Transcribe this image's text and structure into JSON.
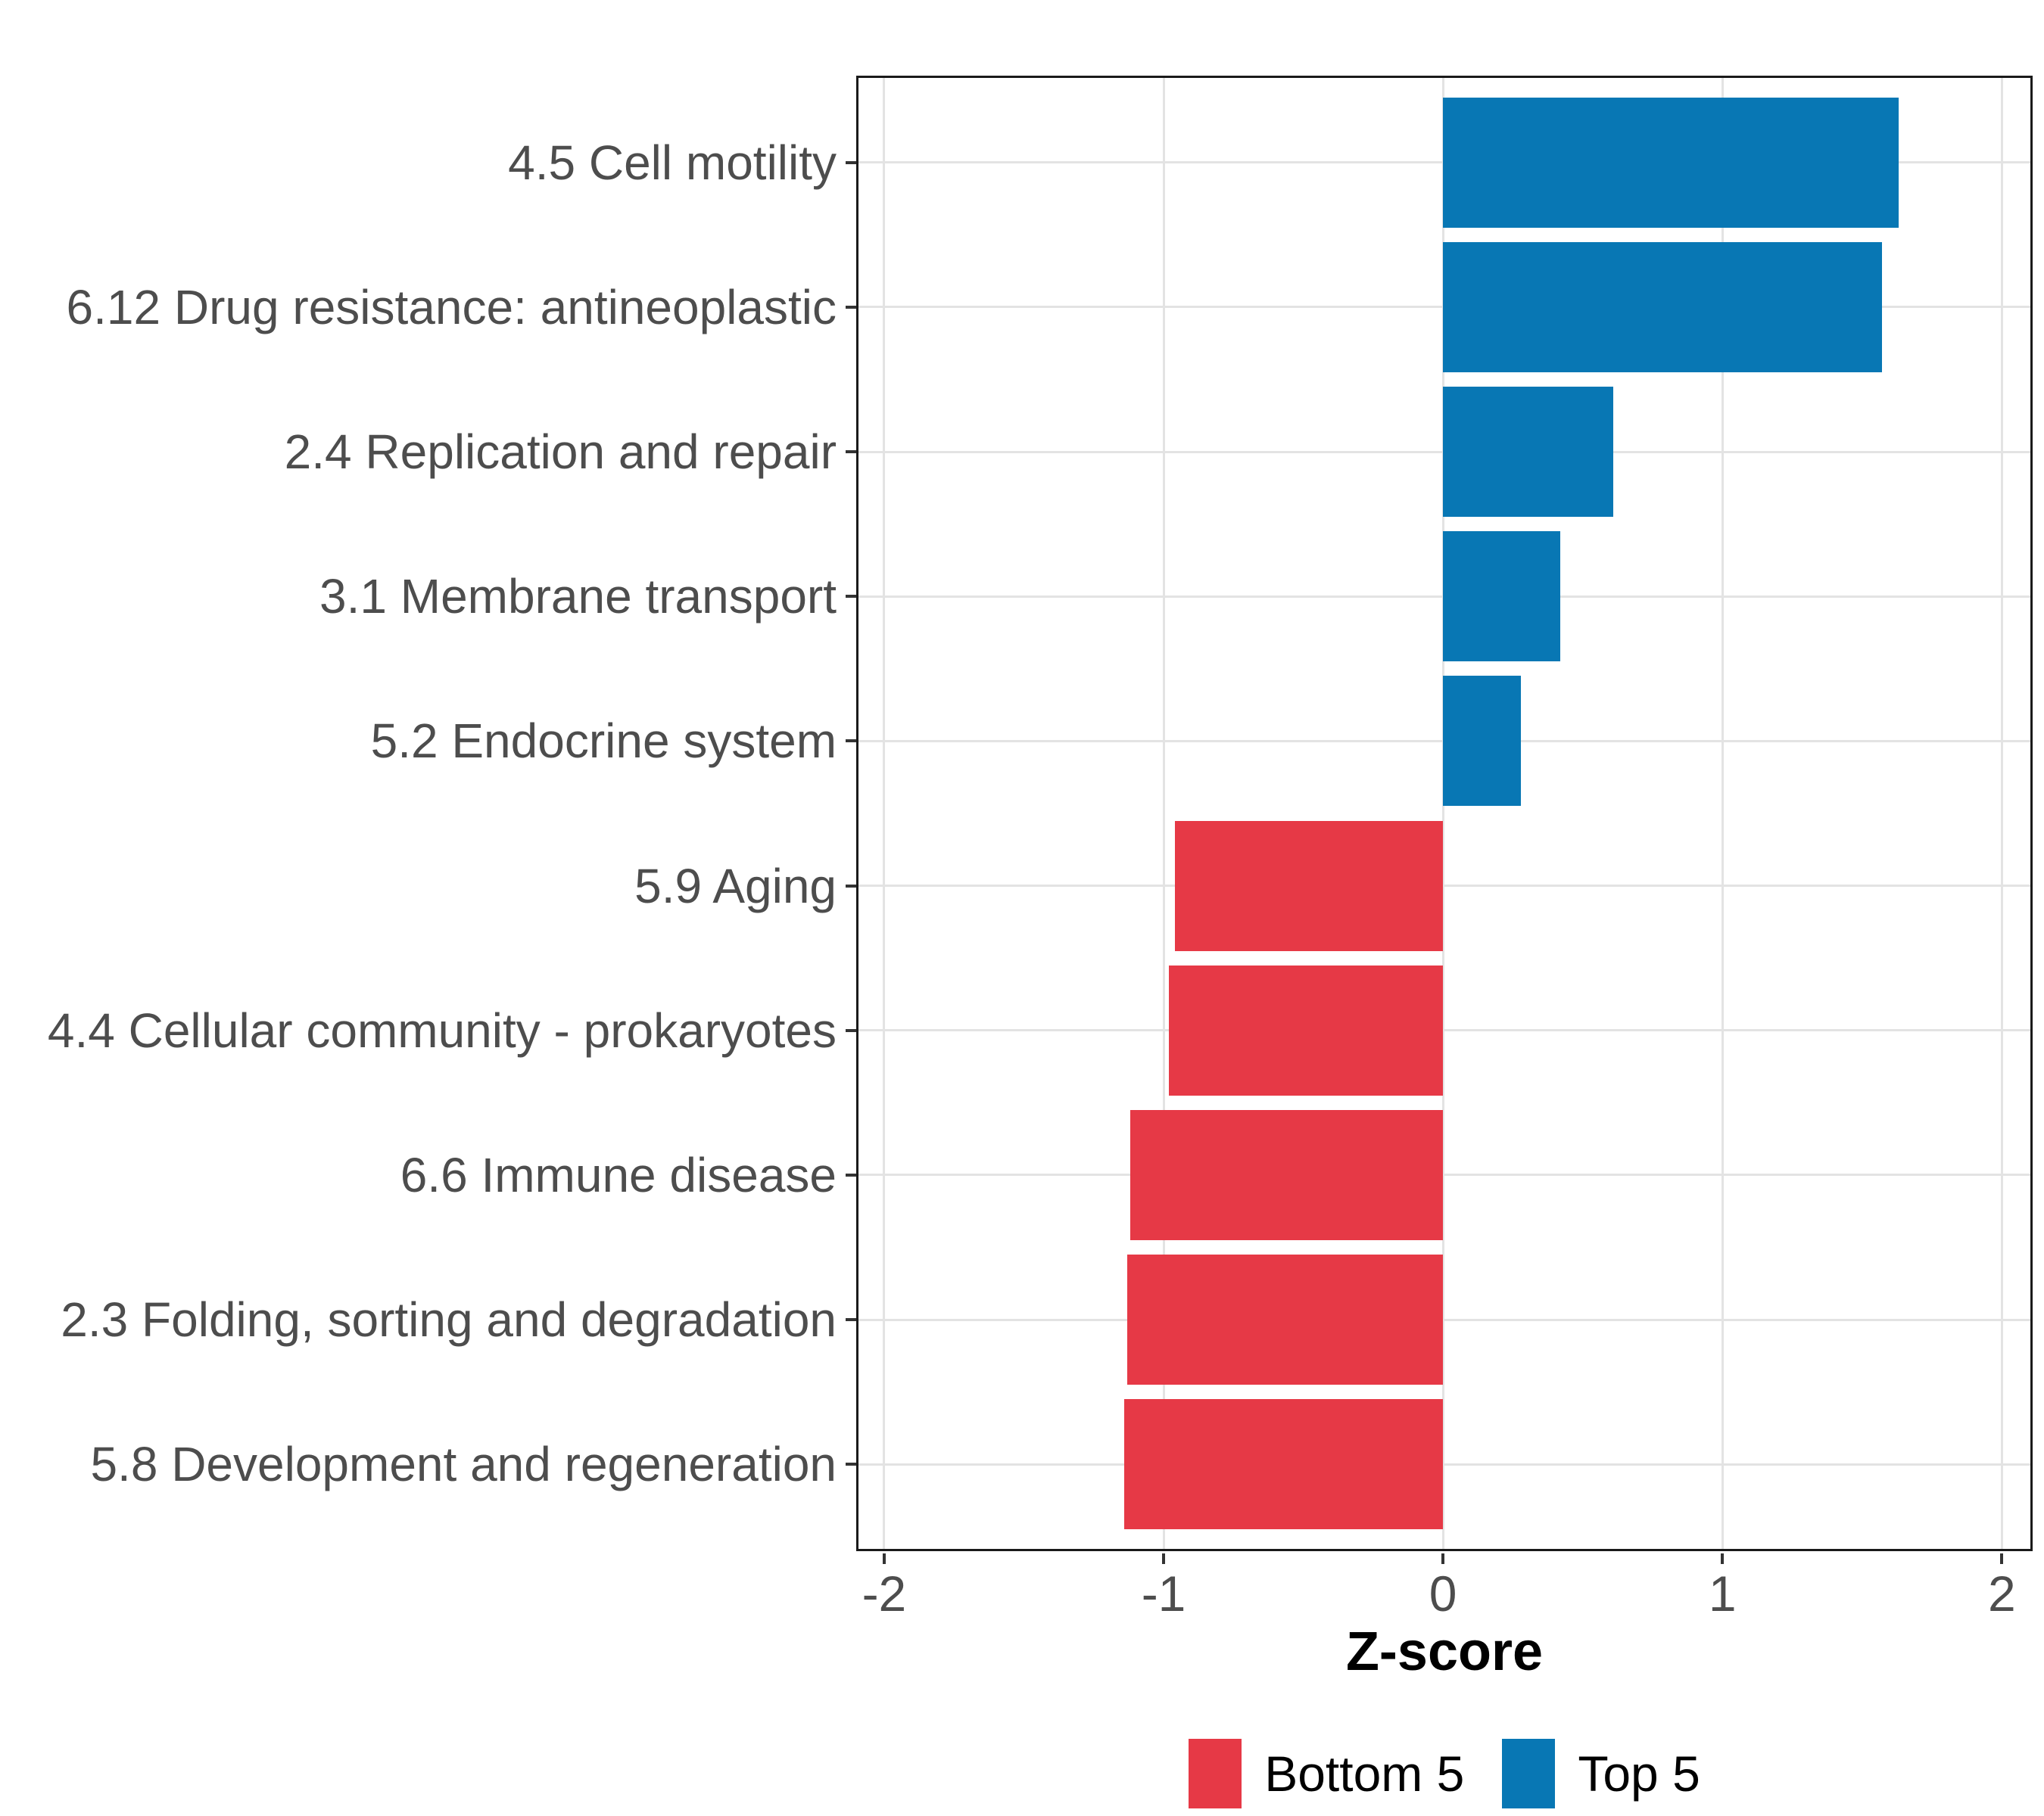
{
  "chart_data": {
    "type": "bar",
    "orientation": "horizontal",
    "title": "",
    "xlabel": "Z-score",
    "ylabel": "",
    "categories": [
      "4.5 Cell motility",
      "6.12 Drug resistance: antineoplastic",
      "2.4 Replication and repair",
      "3.1 Membrane transport",
      "5.2 Endocrine system",
      "5.9 Aging",
      "4.4 Cellular community - prokaryotes",
      "6.6 Immune disease",
      "2.3 Folding, sorting and degradation",
      "5.8 Development and regeneration"
    ],
    "values": [
      1.63,
      1.57,
      0.61,
      0.42,
      0.28,
      -0.96,
      -0.98,
      -1.12,
      -1.13,
      -1.14
    ],
    "groups": [
      "Top 5",
      "Top 5",
      "Top 5",
      "Top 5",
      "Top 5",
      "Bottom 5",
      "Bottom 5",
      "Bottom 5",
      "Bottom 5",
      "Bottom 5"
    ],
    "x_ticks": [
      -2,
      -1,
      0,
      1,
      2
    ],
    "x_tick_labels": [
      "-2",
      "-1",
      "0",
      "1",
      "2"
    ],
    "xlim": [
      -2.1,
      2.11
    ],
    "grid": true,
    "legend_position": "bottom",
    "legend": [
      {
        "label": "Bottom 5",
        "color": "#E63946"
      },
      {
        "label": "Top 5",
        "color": "#0877B4"
      }
    ],
    "colors": {
      "bar_positive": "#0877B4",
      "bar_negative": "#E63946",
      "gridline": "#e3e3e3",
      "panel_border": "#1a1a1a",
      "axis_text": "#4d4d4d",
      "axis_title": "#000000"
    }
  }
}
